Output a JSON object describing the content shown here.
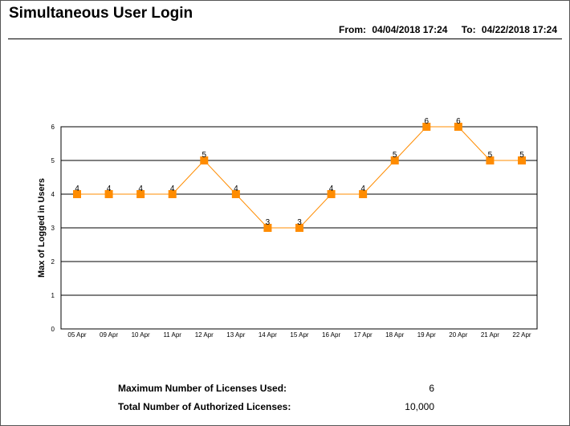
{
  "header": {
    "title": "Simultaneous User Login",
    "from_label": "From:",
    "from_value": "04/04/2018 17:24",
    "to_label": "To:",
    "to_value": "04/22/2018 17:24"
  },
  "chart_data": {
    "type": "line",
    "title": "",
    "xlabel": "",
    "ylabel": "Max of Logged in Users",
    "categories": [
      "05 Apr",
      "09 Apr",
      "10 Apr",
      "11 Apr",
      "12 Apr",
      "13 Apr",
      "14 Apr",
      "15 Apr",
      "16 Apr",
      "17 Apr",
      "18 Apr",
      "19 Apr",
      "20 Apr",
      "21 Apr",
      "22 Apr"
    ],
    "values": [
      4,
      4,
      4,
      4,
      5,
      4,
      3,
      3,
      4,
      4,
      5,
      6,
      6,
      5,
      5
    ],
    "ylim": [
      0,
      6
    ],
    "yticks": [
      0,
      1,
      2,
      3,
      4,
      5,
      6
    ],
    "grid": true,
    "data_labels": true,
    "marker": "square",
    "color": "#FF8C00"
  },
  "summary": {
    "max_used_label": "Maximum Number of Licenses Used:",
    "max_used_value": "6",
    "total_label": "Total Number of Authorized Licenses:",
    "total_value": "10,000"
  }
}
